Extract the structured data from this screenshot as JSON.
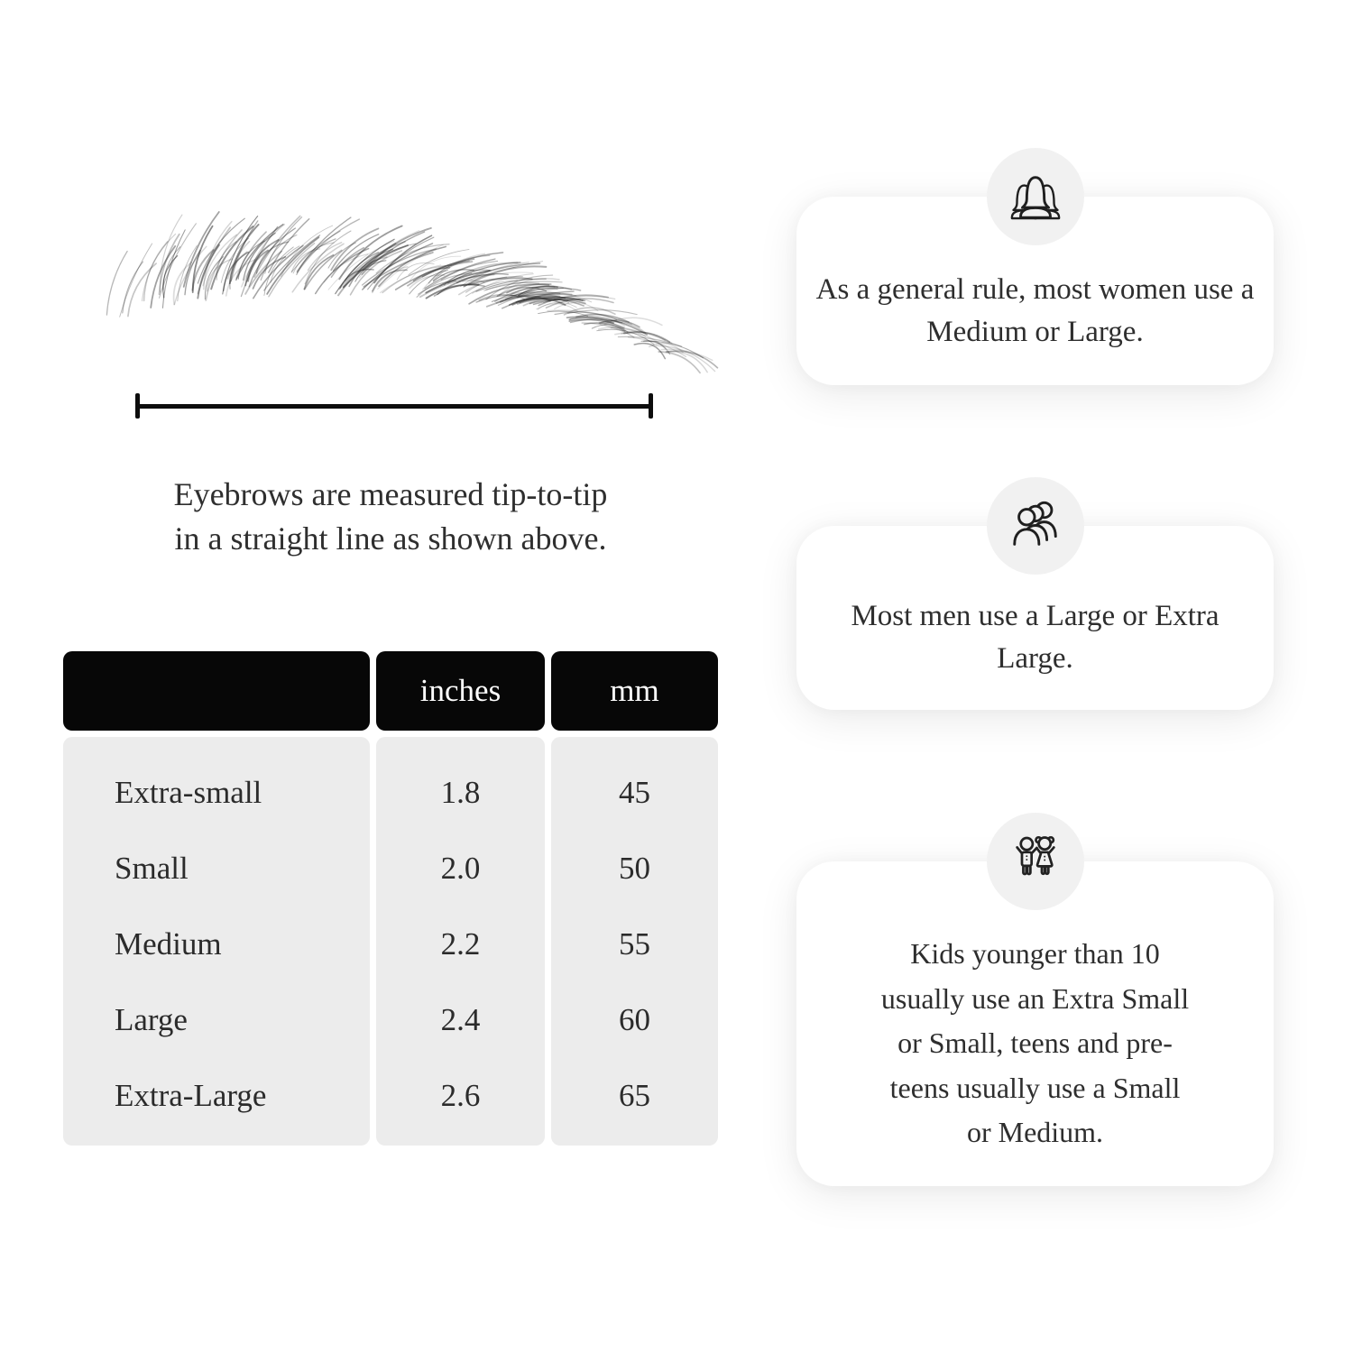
{
  "infographic": {
    "measurement": {
      "caption_line1": "Eyebrows are measured tip-to-tip",
      "caption_line2": "in a straight line as shown above."
    },
    "size_table": {
      "headers": {
        "size": "",
        "inches": "inches",
        "mm": "mm"
      },
      "rows": [
        {
          "size": "Extra-small",
          "inches": "1.8",
          "mm": "45"
        },
        {
          "size": "Small",
          "inches": "2.0",
          "mm": "50"
        },
        {
          "size": "Medium",
          "inches": "2.2",
          "mm": "55"
        },
        {
          "size": "Large",
          "inches": "2.4",
          "mm": "60"
        },
        {
          "size": "Extra-Large",
          "inches": "2.6",
          "mm": "65"
        }
      ]
    },
    "cards": [
      {
        "icon": "women-group-icon",
        "text": "As a general rule, most women use a Medium or Large."
      },
      {
        "icon": "men-group-icon",
        "text": "Most men use a Large or Extra Large."
      },
      {
        "icon": "children-icon",
        "text": "Kids younger than 10 usually use an Extra Small or Small, teens and pre-teens usually use a Small or Medium."
      }
    ],
    "colors": {
      "table_header_bg": "#070707",
      "table_header_text": "#ffffff",
      "table_body_bg": "#ececec",
      "icon_circle_bg": "#f1f1f1",
      "card_bg": "#ffffff",
      "line": "#0d0d0d",
      "text": "#2e2e2e"
    }
  }
}
